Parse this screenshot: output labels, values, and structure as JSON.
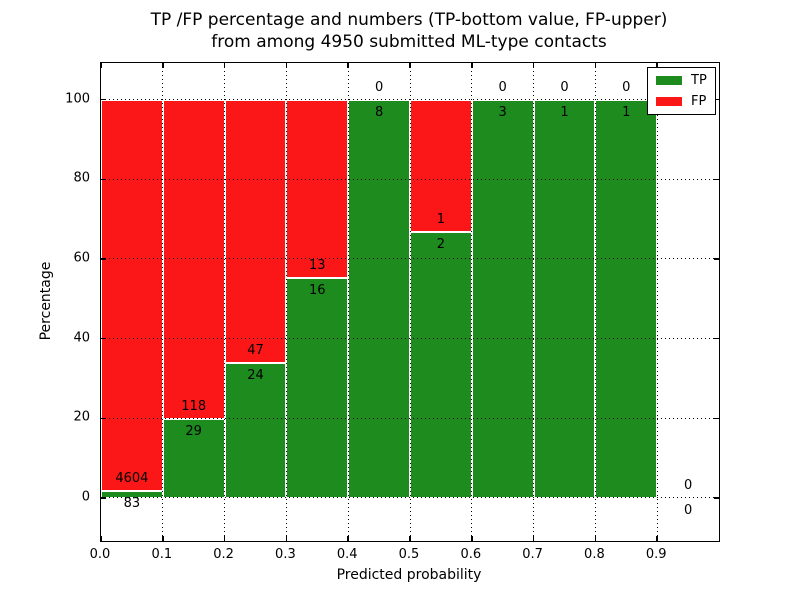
{
  "title": {
    "line1": "TP /FP percentage and numbers (TP-bottom value, FP-upper)",
    "line2": "from among 4950 submitted ML-type contacts"
  },
  "axes": {
    "xlabel": "Predicted probability",
    "ylabel": "Percentage"
  },
  "legend": {
    "position": "upper right",
    "items": [
      {
        "label": "TP",
        "color": "#1e8b1e"
      },
      {
        "label": "FP",
        "color": "#fb1717"
      }
    ]
  },
  "chart_data": {
    "type": "bar",
    "stacked": true,
    "title": "TP /FP percentage and numbers (TP-bottom value, FP-upper) from among 4950 submitted ML-type contacts",
    "xlabel": "Predicted probability",
    "ylabel": "Percentage",
    "xlim": [
      0.0,
      1.0
    ],
    "ylim": [
      -10.8,
      109.2
    ],
    "xticks": [
      0.0,
      0.1,
      0.2,
      0.3,
      0.4,
      0.5,
      0.6,
      0.7,
      0.8,
      0.9
    ],
    "xticklabels": [
      "0.0",
      "0.1",
      "0.2",
      "0.3",
      "0.4",
      "0.5",
      "0.6",
      "0.7",
      "0.8",
      "0.9"
    ],
    "yticks": [
      0,
      20,
      40,
      60,
      80,
      100
    ],
    "grid": "dotted both axes",
    "legend_position": "upper right",
    "colors": {
      "tp": "#1e8b1e",
      "fp": "#fb1717",
      "bar_edge": "#ffffff"
    },
    "bar_semantics": "each bin stacked to 100%: TP percentage bottom (green), FP percentage top (red); count labels: FP count above stack boundary, TP count below",
    "bins": [
      {
        "range": [
          0.0,
          0.1
        ],
        "tp": 83,
        "fp": 4604
      },
      {
        "range": [
          0.1,
          0.2
        ],
        "tp": 29,
        "fp": 118
      },
      {
        "range": [
          0.2,
          0.3
        ],
        "tp": 24,
        "fp": 47
      },
      {
        "range": [
          0.3,
          0.4
        ],
        "tp": 16,
        "fp": 13
      },
      {
        "range": [
          0.4,
          0.5
        ],
        "tp": 8,
        "fp": 0
      },
      {
        "range": [
          0.5,
          0.6
        ],
        "tp": 2,
        "fp": 1
      },
      {
        "range": [
          0.6,
          0.7
        ],
        "tp": 3,
        "fp": 0
      },
      {
        "range": [
          0.7,
          0.8
        ],
        "tp": 1,
        "fp": 0
      },
      {
        "range": [
          0.8,
          0.9
        ],
        "tp": 1,
        "fp": 0
      },
      {
        "range": [
          0.9,
          1.0
        ],
        "tp": 0,
        "fp": 0
      }
    ],
    "total_contacts": 4950
  }
}
